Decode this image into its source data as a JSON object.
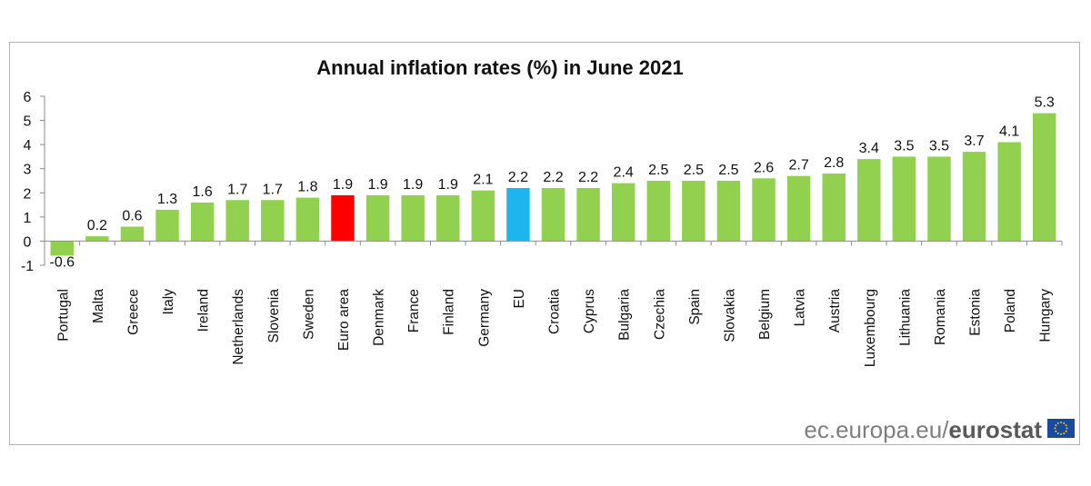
{
  "chart_data": {
    "type": "bar",
    "title": "Annual inflation rates (%) in June 2021",
    "xlabel": "",
    "ylabel": "",
    "ylim": [
      -1,
      6
    ],
    "yticks": [
      "6",
      "5",
      "4",
      "3",
      "2",
      "1",
      "0",
      "-1"
    ],
    "categories": [
      "Portugal",
      "Malta",
      "Greece",
      "Italy",
      "Ireland",
      "Netherlands",
      "Slovenia",
      "Sweden",
      "Euro area",
      "Denmark",
      "France",
      "Finland",
      "Germany",
      "EU",
      "Croatia",
      "Cyprus",
      "Bulgaria",
      "Czechia",
      "Spain",
      "Slovakia",
      "Belgium",
      "Latvia",
      "Austria",
      "Luxembourg",
      "Lithuania",
      "Romania",
      "Estonia",
      "Poland",
      "Hungary"
    ],
    "values": [
      -0.6,
      0.2,
      0.6,
      1.3,
      1.6,
      1.7,
      1.7,
      1.8,
      1.9,
      1.9,
      1.9,
      1.9,
      2.1,
      2.2,
      2.2,
      2.2,
      2.4,
      2.5,
      2.5,
      2.5,
      2.6,
      2.7,
      2.8,
      3.4,
      3.5,
      3.5,
      3.7,
      4.1,
      5.3
    ],
    "value_labels": [
      "-0.6",
      "0.2",
      "0.6",
      "1.3",
      "1.6",
      "1.7",
      "1.7",
      "1.8",
      "1.9",
      "1.9",
      "1.9",
      "1.9",
      "2.1",
      "2.2",
      "2.2",
      "2.2",
      "2.4",
      "2.5",
      "2.5",
      "2.5",
      "2.6",
      "2.7",
      "2.8",
      "3.4",
      "3.5",
      "3.5",
      "3.7",
      "4.1",
      "5.3"
    ],
    "colors": {
      "default": "#92d050",
      "highlight": {
        "Euro area": "#ff0000",
        "EU": "#1eb4ee"
      }
    }
  },
  "source": {
    "domain": "ec.europa.eu/",
    "brand": "eurostat"
  },
  "flag_colors": {
    "blue": "#1a4aa0",
    "stars": "#ffd200"
  }
}
